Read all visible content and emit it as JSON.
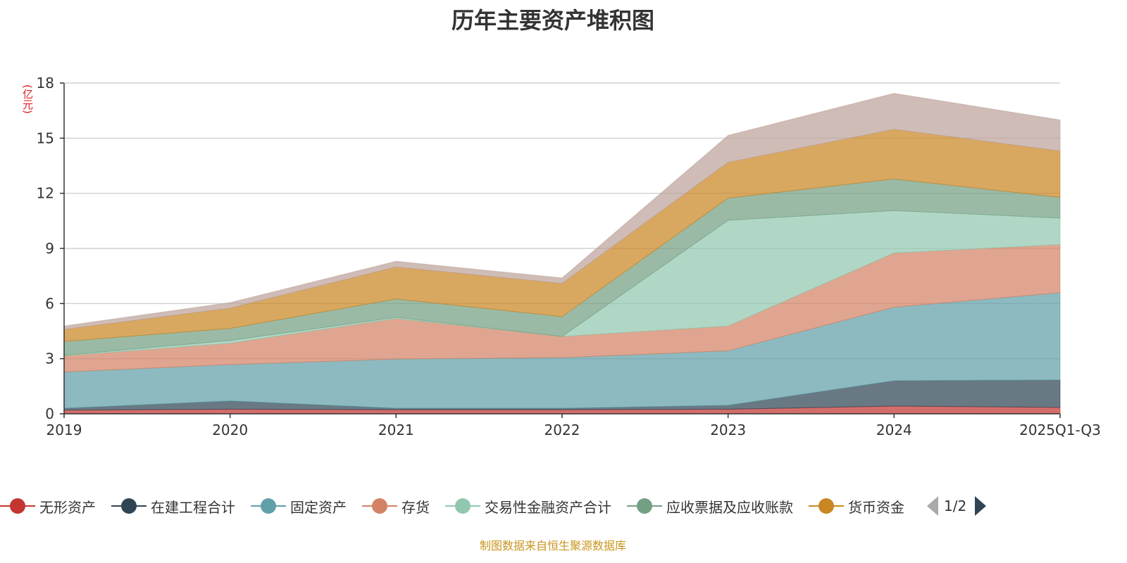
{
  "title": "历年主要资产堆积图",
  "source": "制图数据来自恒生聚源数据库",
  "legend_pager": "1/2",
  "chart_data": {
    "type": "area",
    "stacked": true,
    "title": "历年主要资产堆积图",
    "ylabel": "(亿元)",
    "xlabel": "",
    "ylim": [
      0,
      18
    ],
    "yticks": [
      0,
      3,
      6,
      9,
      12,
      15,
      18
    ],
    "grid": true,
    "legend_position": "bottom",
    "categories": [
      "2019",
      "2020",
      "2021",
      "2022",
      "2023",
      "2024",
      "2025Q1-Q3"
    ],
    "series": [
      {
        "name": "无形资产",
        "color": "#c23531",
        "values": [
          0.2,
          0.25,
          0.22,
          0.22,
          0.25,
          0.42,
          0.35
        ]
      },
      {
        "name": "在建工程合计",
        "color": "#2f4554",
        "values": [
          0.1,
          0.45,
          0.08,
          0.08,
          0.21,
          1.38,
          1.49
        ]
      },
      {
        "name": "固定资产",
        "color": "#61a0a8",
        "values": [
          1.98,
          1.98,
          2.68,
          2.76,
          2.97,
          4.0,
          4.75
        ]
      },
      {
        "name": "存货",
        "color": "#d48265",
        "values": [
          0.87,
          1.16,
          2.2,
          1.15,
          1.35,
          2.95,
          2.62
        ]
      },
      {
        "name": "交易性金融资产合计",
        "color": "#91c7ae",
        "values": [
          0.04,
          0.15,
          0.07,
          0.0,
          5.75,
          2.31,
          1.44
        ]
      },
      {
        "name": "应收票据及应收账款",
        "color": "#749f83",
        "values": [
          0.75,
          0.66,
          1.0,
          1.08,
          1.21,
          1.72,
          1.13
        ]
      },
      {
        "name": "货币资金",
        "color": "#ca8622",
        "values": [
          0.65,
          1.1,
          1.74,
          1.8,
          1.94,
          2.7,
          2.52
        ]
      },
      {
        "name": "",
        "color": "#bda29a",
        "values": [
          0.19,
          0.3,
          0.31,
          0.3,
          1.47,
          1.96,
          1.69
        ]
      }
    ]
  }
}
